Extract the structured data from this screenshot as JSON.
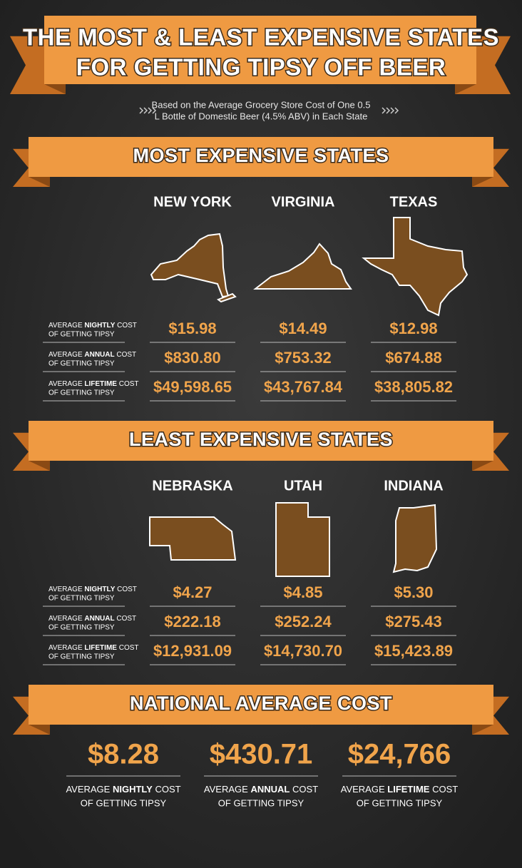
{
  "header": {
    "title_lines": [
      "THE MOST & LEAST EXPENSIVE STATES",
      "FOR GETTING TIPSY OFF BEER"
    ],
    "subtitle_lines": [
      "Based on the Average Grocery Store Cost of One 0.5",
      "L Bottle of Domestic Beer (4.5% ABV) in Each State"
    ]
  },
  "sections": [
    {
      "heading": "MOST EXPENSIVE STATES",
      "states": [
        "NEW YORK",
        "VIRGINIA",
        "TEXAS"
      ],
      "rows": [
        {
          "label": {
            "pre": "AVERAGE",
            "key": "NIGHTLY",
            "post": "COST",
            "line2": "OF GETTING TIPSY"
          },
          "values": [
            "$15.98",
            "$14.49",
            "$12.98"
          ]
        },
        {
          "label": {
            "pre": "AVERAGE",
            "key": "ANNUAL",
            "post": "COST",
            "line2": "OF GETTING TIPSY"
          },
          "values": [
            "$830.80",
            "$753.32",
            "$674.88"
          ]
        },
        {
          "label": {
            "pre": "AVERAGE",
            "key": "LIFETIME",
            "post": "COST",
            "line2": "OF GETTING TIPSY"
          },
          "values": [
            "$49,598.65",
            "$43,767.84",
            "$38,805.82"
          ]
        }
      ]
    },
    {
      "heading": "LEAST EXPENSIVE STATES",
      "states": [
        "NEBRASKA",
        "UTAH",
        "INDIANA"
      ],
      "rows": [
        {
          "label": {
            "pre": "AVERAGE",
            "key": "NIGHTLY",
            "post": "COST",
            "line2": "OF GETTING TIPSY"
          },
          "values": [
            "$4.27",
            "$4.85",
            "$5.30"
          ]
        },
        {
          "label": {
            "pre": "AVERAGE",
            "key": "ANNUAL",
            "post": "COST",
            "line2": "OF GETTING TIPSY"
          },
          "values": [
            "$222.18",
            "$252.24",
            "$275.43"
          ]
        },
        {
          "label": {
            "pre": "AVERAGE",
            "key": "LIFETIME",
            "post": "COST",
            "line2": "OF GETTING TIPSY"
          },
          "values": [
            "$12,931.09",
            "$14,730.70",
            "$15,423.89"
          ]
        }
      ]
    }
  ],
  "national": {
    "heading": "NATIONAL AVERAGE COST",
    "items": [
      {
        "value": "$8.28",
        "label": {
          "pre": "AVERAGE",
          "key": "NIGHTLY",
          "post": "COST",
          "line2": "OF GETTING TIPSY"
        }
      },
      {
        "value": "$430.71",
        "label": {
          "pre": "AVERAGE",
          "key": "ANNUAL",
          "post": "COST",
          "line2": "OF GETTING TIPSY"
        }
      },
      {
        "value": "$24,766",
        "label": {
          "pre": "AVERAGE",
          "key": "LIFETIME",
          "post": "COST",
          "line2": "OF GETTING TIPSY"
        }
      }
    ]
  }
}
